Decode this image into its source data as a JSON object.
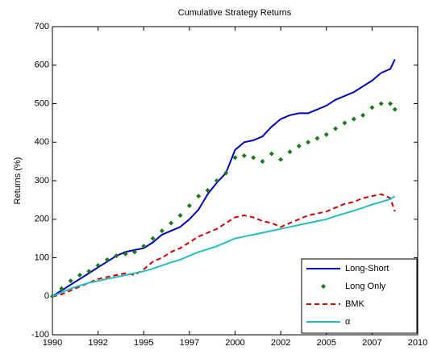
{
  "chart_data": {
    "type": "line",
    "title": "Cumulative Strategy Returns",
    "y_label": "Returns (%)",
    "x": [
      1990,
      1990.5,
      1991,
      1991.5,
      1992,
      1992.5,
      1993,
      1993.5,
      1994,
      1994.5,
      1995,
      1995.5,
      1996,
      1996.5,
      1997,
      1997.5,
      1998,
      1998.5,
      1999,
      1999.5,
      2000,
      2000.5,
      2001,
      2001.5,
      2002,
      2002.5,
      2003,
      2003.5,
      2004,
      2004.5,
      2005,
      2005.5,
      2006,
      2006.5,
      2007,
      2007.5,
      2008,
      2008.5,
      2008.75
    ],
    "series": [
      {
        "name": "Long-Short",
        "color": "#0000c0",
        "style": "solid",
        "values": [
          0,
          15,
          30,
          45,
          60,
          75,
          90,
          105,
          115,
          120,
          125,
          140,
          160,
          170,
          180,
          200,
          225,
          265,
          295,
          320,
          380,
          400,
          405,
          415,
          440,
          460,
          470,
          475,
          475,
          485,
          495,
          510,
          520,
          530,
          545,
          560,
          580,
          590,
          615
        ]
      },
      {
        "name": "Long Only",
        "color": "#1a7a1a",
        "style": "markers",
        "values": [
          0,
          20,
          40,
          55,
          65,
          80,
          95,
          105,
          110,
          115,
          130,
          150,
          170,
          190,
          210,
          235,
          260,
          275,
          300,
          320,
          360,
          365,
          360,
          350,
          370,
          355,
          375,
          390,
          400,
          410,
          420,
          435,
          450,
          460,
          470,
          490,
          500,
          500,
          485
        ]
      },
      {
        "name": "BMK",
        "color": "#d00000",
        "style": "dashed",
        "values": [
          0,
          5,
          15,
          25,
          35,
          45,
          50,
          55,
          60,
          55,
          70,
          90,
          100,
          115,
          125,
          140,
          155,
          165,
          175,
          190,
          205,
          210,
          205,
          195,
          190,
          180,
          190,
          200,
          210,
          215,
          220,
          230,
          240,
          245,
          255,
          260,
          265,
          255,
          220
        ]
      },
      {
        "name": "α",
        "color": "#20c0c0",
        "style": "solid",
        "values": [
          0,
          10,
          20,
          28,
          35,
          40,
          45,
          50,
          55,
          60,
          65,
          72,
          80,
          88,
          95,
          105,
          115,
          122,
          130,
          140,
          150,
          155,
          160,
          165,
          170,
          175,
          180,
          185,
          190,
          195,
          200,
          208,
          215,
          222,
          230,
          238,
          245,
          252,
          260
        ]
      }
    ],
    "xlim": [
      1990,
      2010
    ],
    "xticks": [
      1990,
      {
        "value": 1992.5,
        "label": "1992"
      },
      1995,
      {
        "value": 1997.5,
        "label": "1997"
      },
      2000,
      {
        "value": 2002.5,
        "label": "2002"
      },
      2005,
      {
        "value": 2007.5,
        "label": "2007"
      },
      2010
    ],
    "ylim": [
      -100,
      700
    ],
    "yticks": [
      -100,
      0,
      100,
      200,
      300,
      400,
      500,
      600,
      700
    ],
    "legend": "southeast"
  }
}
